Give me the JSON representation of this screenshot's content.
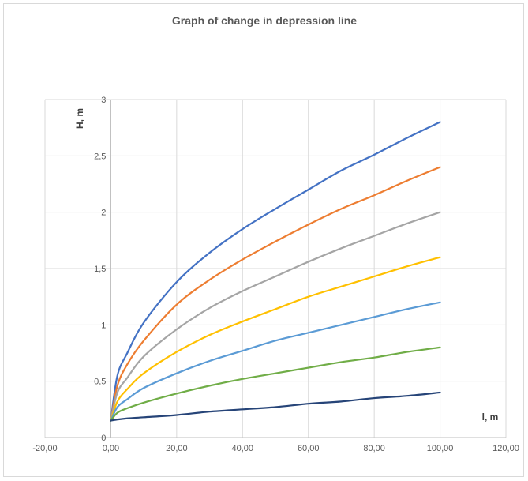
{
  "chart_data": {
    "type": "line",
    "title": "Graph of change in depression line",
    "xlabel": "l, m",
    "ylabel": "H, m",
    "xlim": [
      -20,
      120
    ],
    "ylim": [
      0,
      3
    ],
    "x_ticks": [
      "-20,00",
      "0,00",
      "20,00",
      "40,00",
      "60,00",
      "80,00",
      "100,00",
      "120,00"
    ],
    "y_ticks": [
      "0",
      "0,5",
      "1",
      "1,5",
      "2",
      "2,5",
      "3"
    ],
    "grid": "vertical and horizontal",
    "legend": "none",
    "x": [
      0,
      2,
      5,
      10,
      20,
      30,
      40,
      50,
      60,
      70,
      80,
      90,
      100
    ],
    "series": [
      {
        "color": "#4472c4",
        "values": [
          0.15,
          0.55,
          0.75,
          1.02,
          1.38,
          1.64,
          1.85,
          2.03,
          2.2,
          2.37,
          2.51,
          2.66,
          2.8
        ]
      },
      {
        "color": "#ed7d31",
        "values": [
          0.15,
          0.46,
          0.65,
          0.86,
          1.18,
          1.4,
          1.58,
          1.74,
          1.89,
          2.03,
          2.15,
          2.28,
          2.4
        ]
      },
      {
        "color": "#a5a5a5",
        "values": [
          0.15,
          0.4,
          0.53,
          0.72,
          0.96,
          1.15,
          1.3,
          1.43,
          1.56,
          1.68,
          1.79,
          1.9,
          2.0
        ]
      },
      {
        "color": "#ffc000",
        "values": [
          0.15,
          0.32,
          0.43,
          0.57,
          0.76,
          0.91,
          1.03,
          1.14,
          1.25,
          1.34,
          1.43,
          1.52,
          1.6
        ]
      },
      {
        "color": "#5b9bd5",
        "values": [
          0.15,
          0.27,
          0.34,
          0.44,
          0.57,
          0.68,
          0.77,
          0.86,
          0.93,
          1.0,
          1.07,
          1.14,
          1.2
        ]
      },
      {
        "color": "#70ad47",
        "values": [
          0.15,
          0.22,
          0.26,
          0.31,
          0.39,
          0.46,
          0.52,
          0.57,
          0.62,
          0.67,
          0.71,
          0.76,
          0.8
        ]
      },
      {
        "color": "#264478",
        "values": [
          0.15,
          0.16,
          0.17,
          0.18,
          0.2,
          0.23,
          0.25,
          0.27,
          0.3,
          0.32,
          0.35,
          0.37,
          0.4
        ]
      }
    ]
  }
}
